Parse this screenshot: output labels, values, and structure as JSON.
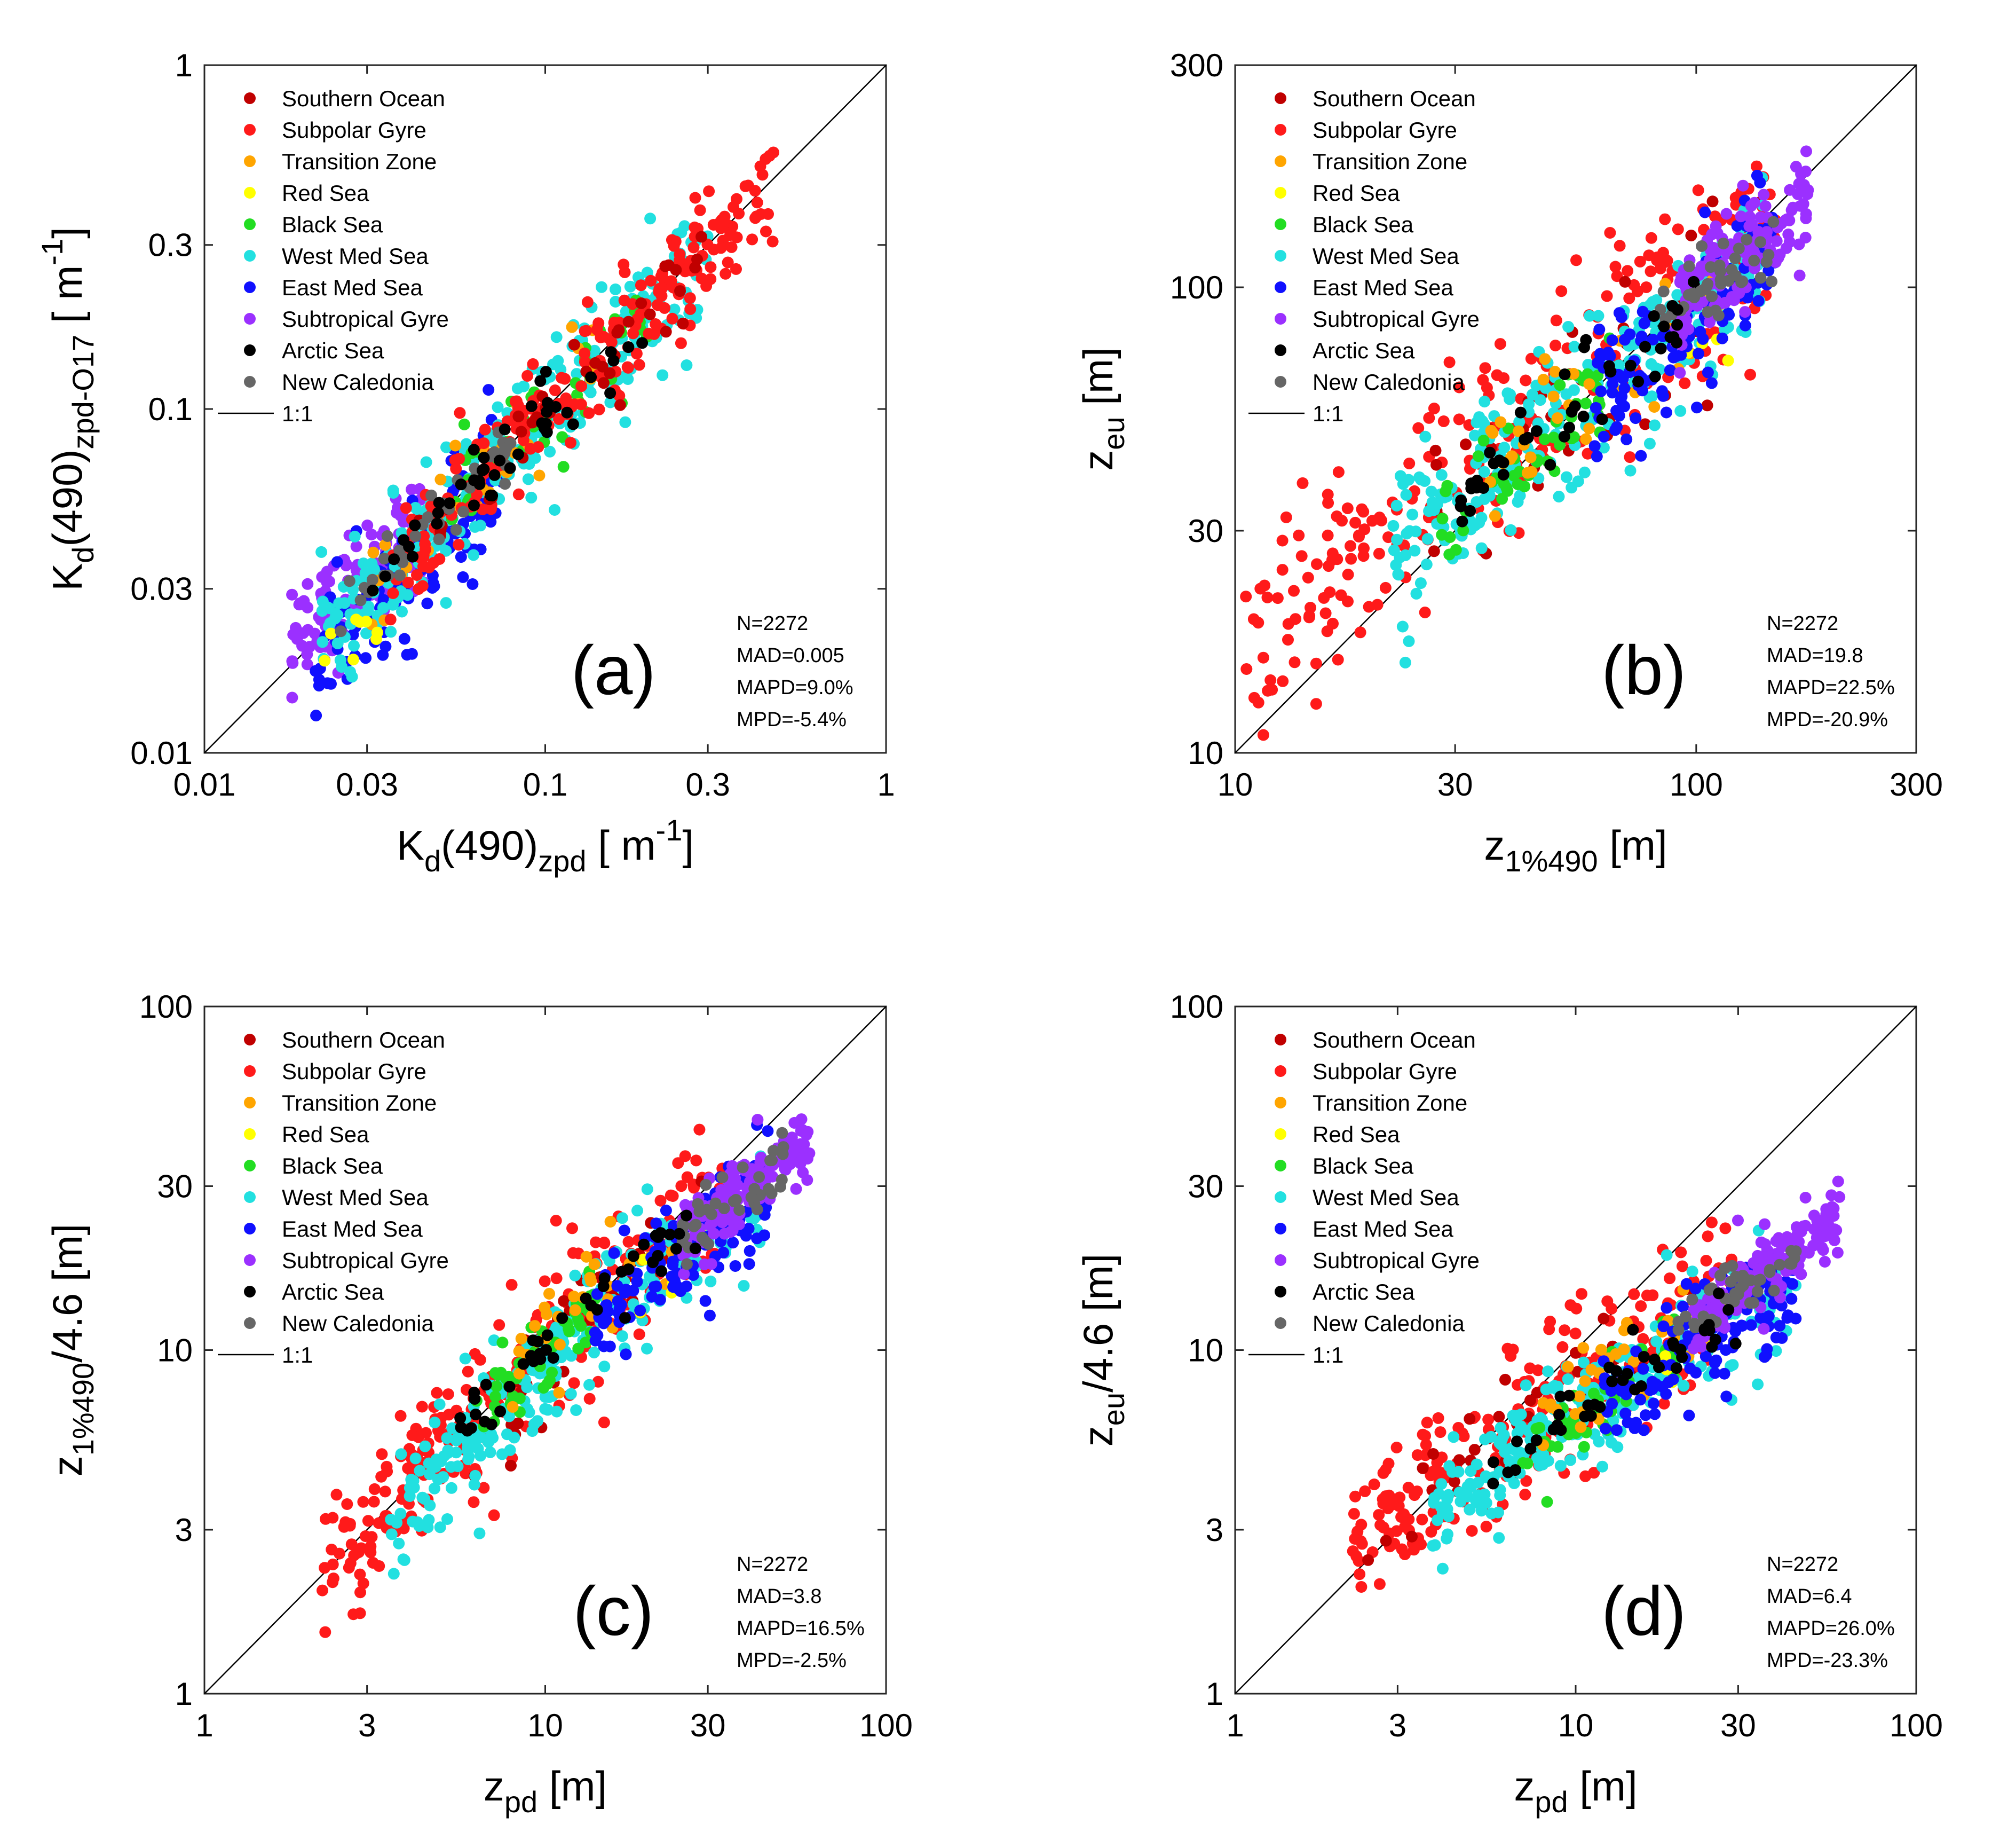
{
  "legend": {
    "entries": [
      {
        "name": "Southern Ocean",
        "color": "#c00000"
      },
      {
        "name": "Subpolar Gyre",
        "color": "#ff1a1a"
      },
      {
        "name": "Transition Zone",
        "color": "#ffa500"
      },
      {
        "name": "Red Sea",
        "color": "#ffff00"
      },
      {
        "name": "Black Sea",
        "color": "#22dd22"
      },
      {
        "name": "West Med Sea",
        "color": "#22e0e0"
      },
      {
        "name": "East Med Sea",
        "color": "#1010ff"
      },
      {
        "name": "Subtropical Gyre",
        "color": "#9b30ff"
      },
      {
        "name": "Arctic Sea",
        "color": "#000000"
      },
      {
        "name": "New Caledonia",
        "color": "#666666"
      }
    ],
    "line_label": "1:1"
  },
  "chart_data": [
    {
      "id": "a",
      "type": "scatter",
      "panel_label": "(a)",
      "xscale": "log",
      "yscale": "log",
      "xlim": [
        0.01,
        1
      ],
      "ylim": [
        0.01,
        1
      ],
      "xticks": [
        0.01,
        0.03,
        0.1,
        0.3,
        1
      ],
      "xtick_labels": [
        "0.01",
        "0.03",
        "0.1",
        "0.3",
        "1"
      ],
      "yticks": [
        0.01,
        0.03,
        0.1,
        0.3,
        1
      ],
      "ytick_labels": [
        "0.01",
        "0.03",
        "0.1",
        "0.3",
        "1"
      ],
      "xlabel": {
        "main": "K",
        "sub": "d",
        "mid": "(490)",
        "sub2": "zpd",
        "tail": " [ m",
        "sup": "-1",
        "end": "]"
      },
      "ylabel": {
        "main": "K",
        "sub": "d",
        "mid": "(490)",
        "sub2": "zpd-O17",
        "tail": " [ m",
        "sup": "-1",
        "end": "]"
      },
      "stats": {
        "n": "N=2272",
        "mad": "MAD=0.005",
        "mapd": "MAPD=9.0%",
        "mpd": "MPD=-5.4%"
      },
      "cloud": {
        "x_range": [
          0.019,
          0.47
        ],
        "slope": 1.0,
        "bias": 0.94,
        "spread": 0.09
      },
      "series": [
        {
          "name": "Subtropical Gyre",
          "x_range": [
            0.018,
            0.045
          ],
          "ratio": 1.08,
          "spread": 0.08,
          "count": 140
        },
        {
          "name": "East Med Sea",
          "x_range": [
            0.021,
            0.075
          ],
          "ratio": 0.86,
          "spread": 0.1,
          "count": 120
        },
        {
          "name": "West Med Sea",
          "x_range": [
            0.022,
            0.3
          ],
          "ratio": 0.93,
          "spread": 0.1,
          "count": 260
        },
        {
          "name": "Black Sea",
          "x_range": [
            0.05,
            0.2
          ],
          "ratio": 0.95,
          "spread": 0.07,
          "count": 50
        },
        {
          "name": "Transition Zone",
          "x_range": [
            0.03,
            0.15
          ],
          "ratio": 0.98,
          "spread": 0.07,
          "count": 35
        },
        {
          "name": "Red Sea",
          "x_range": [
            0.022,
            0.035
          ],
          "ratio": 0.82,
          "spread": 0.08,
          "count": 8
        },
        {
          "name": "Subpolar Gyre",
          "x_range": [
            0.035,
            0.47
          ],
          "ratio": 0.97,
          "spread": 0.08,
          "count": 230
        },
        {
          "name": "Southern Ocean",
          "x_range": [
            0.04,
            0.3
          ],
          "ratio": 0.98,
          "spread": 0.07,
          "count": 40
        },
        {
          "name": "New Caledonia",
          "x_range": [
            0.025,
            0.08
          ],
          "ratio": 1.0,
          "spread": 0.05,
          "count": 40
        },
        {
          "name": "Arctic Sea",
          "x_range": [
            0.03,
            0.2
          ],
          "ratio": 0.97,
          "spread": 0.05,
          "count": 45
        }
      ]
    },
    {
      "id": "b",
      "type": "scatter",
      "panel_label": "(b)",
      "xscale": "log",
      "yscale": "log",
      "xlim": [
        10,
        300
      ],
      "ylim": [
        10,
        300
      ],
      "xticks": [
        10,
        30,
        100,
        300
      ],
      "xtick_labels": [
        "10",
        "30",
        "100",
        "300"
      ],
      "yticks": [
        10,
        30,
        100,
        300
      ],
      "ytick_labels": [
        "10",
        "30",
        "100",
        "300"
      ],
      "xlabel": {
        "main": "z",
        "sub": "1%490",
        "tail": " [m]"
      },
      "ylabel": {
        "main": "z",
        "sub": "eu",
        "tail": " [m]"
      },
      "stats": {
        "n": "N=2272",
        "mad": "MAD=19.8",
        "mapd": "MAPD=22.5%",
        "mpd": "MPD=-20.9%"
      },
      "series": [
        {
          "name": "Subpolar Gyre",
          "x_range": [
            10.5,
            150
          ],
          "ratio": 0.85,
          "spread": 0.12,
          "count": 260,
          "curve": "b"
        },
        {
          "name": "Southern Ocean",
          "x_range": [
            25,
            150
          ],
          "ratio": 0.8,
          "spread": 0.09,
          "count": 40,
          "curve": "b"
        },
        {
          "name": "West Med Sea",
          "x_range": [
            22,
            140
          ],
          "ratio": 0.78,
          "spread": 0.08,
          "count": 260,
          "curve": "b"
        },
        {
          "name": "Black Sea",
          "x_range": [
            28,
            65
          ],
          "ratio": 0.72,
          "spread": 0.06,
          "count": 50,
          "curve": "b"
        },
        {
          "name": "Transition Zone",
          "x_range": [
            35,
            110
          ],
          "ratio": 0.8,
          "spread": 0.07,
          "count": 35,
          "curve": "b"
        },
        {
          "name": "Red Sea",
          "x_range": [
            90,
            130
          ],
          "ratio": 0.7,
          "spread": 0.05,
          "count": 8,
          "curve": "b"
        },
        {
          "name": "East Med Sea",
          "x_range": [
            60,
            150
          ],
          "ratio": 0.74,
          "spread": 0.08,
          "count": 130,
          "curve": "b"
        },
        {
          "name": "Subtropical Gyre",
          "x_range": [
            90,
            175
          ],
          "ratio": 0.85,
          "spread": 0.06,
          "count": 150,
          "curve": "b"
        },
        {
          "name": "New Caledonia",
          "x_range": [
            80,
            150
          ],
          "ratio": 0.82,
          "spread": 0.05,
          "count": 40,
          "curve": "b"
        },
        {
          "name": "Arctic Sea",
          "x_range": [
            30,
            100
          ],
          "ratio": 0.78,
          "spread": 0.05,
          "count": 45,
          "curve": "b"
        }
      ]
    },
    {
      "id": "c",
      "type": "scatter",
      "panel_label": "(c)",
      "xscale": "log",
      "yscale": "log",
      "xlim": [
        1,
        100
      ],
      "ylim": [
        1,
        100
      ],
      "xticks": [
        1,
        3,
        10,
        30,
        100
      ],
      "xtick_labels": [
        "1",
        "3",
        "10",
        "30",
        "100"
      ],
      "yticks": [
        1,
        3,
        10,
        30,
        100
      ],
      "ytick_labels": [
        "1",
        "3",
        "10",
        "30",
        "100"
      ],
      "xlabel": {
        "main": "z",
        "sub": "pd",
        "tail": " [m]"
      },
      "ylabel": {
        "main": "z",
        "sub": "1%490",
        "tail": "/4.6 [m]"
      },
      "stats": {
        "n": "N=2272",
        "mad": "MAD=3.8",
        "mapd": "MAPD=16.5%",
        "mpd": "MPD=-2.5%"
      },
      "series": [
        {
          "name": "Subpolar Gyre",
          "x_range": [
            2.2,
            35
          ],
          "ratio": 1.0,
          "spread": 0.11,
          "count": 260,
          "curve": "c"
        },
        {
          "name": "Southern Ocean",
          "x_range": [
            6,
            30
          ],
          "ratio": 1.0,
          "spread": 0.09,
          "count": 40,
          "curve": "c"
        },
        {
          "name": "West Med Sea",
          "x_range": [
            3.5,
            45
          ],
          "ratio": 0.92,
          "spread": 0.09,
          "count": 260,
          "curve": "c"
        },
        {
          "name": "Black Sea",
          "x_range": [
            6,
            14
          ],
          "ratio": 1.0,
          "spread": 0.07,
          "count": 50,
          "curve": "c"
        },
        {
          "name": "Transition Zone",
          "x_range": [
            8,
            25
          ],
          "ratio": 1.05,
          "spread": 0.07,
          "count": 35,
          "curve": "c"
        },
        {
          "name": "Red Sea",
          "x_range": [
            18,
            30
          ],
          "ratio": 0.9,
          "spread": 0.05,
          "count": 8,
          "curve": "c"
        },
        {
          "name": "East Med Sea",
          "x_range": [
            14,
            45
          ],
          "ratio": 0.9,
          "spread": 0.08,
          "count": 130,
          "curve": "c"
        },
        {
          "name": "Subtropical Gyre",
          "x_range": [
            25,
            60
          ],
          "ratio": 1.0,
          "spread": 0.05,
          "count": 150,
          "curve": "c"
        },
        {
          "name": "New Caledonia",
          "x_range": [
            25,
            50
          ],
          "ratio": 1.0,
          "spread": 0.05,
          "count": 40,
          "curve": "c"
        },
        {
          "name": "Arctic Sea",
          "x_range": [
            5.5,
            30
          ],
          "ratio": 1.02,
          "spread": 0.05,
          "count": 45,
          "curve": "c"
        }
      ]
    },
    {
      "id": "d",
      "type": "scatter",
      "panel_label": "(d)",
      "xscale": "log",
      "yscale": "log",
      "xlim": [
        1,
        100
      ],
      "ylim": [
        1,
        100
      ],
      "xticks": [
        1,
        3,
        10,
        30,
        100
      ],
      "xtick_labels": [
        "1",
        "3",
        "10",
        "30",
        "100"
      ],
      "yticks": [
        1,
        3,
        10,
        30,
        100
      ],
      "ytick_labels": [
        "1",
        "3",
        "10",
        "30",
        "100"
      ],
      "xlabel": {
        "main": "z",
        "sub": "pd",
        "tail": " [m]"
      },
      "ylabel": {
        "main": "z",
        "sub": "eu",
        "tail": "/4.6 [m]"
      },
      "stats": {
        "n": "N=2272",
        "mad": "MAD=6.4",
        "mapd": "MAPD=26.0%",
        "mpd": "MPD=-23.3%"
      },
      "series": [
        {
          "name": "Subpolar Gyre",
          "x_range": [
            2.2,
            30
          ],
          "ratio": 0.9,
          "spread": 0.11,
          "count": 260,
          "curve": "d"
        },
        {
          "name": "Southern Ocean",
          "x_range": [
            2.4,
            28
          ],
          "ratio": 0.92,
          "spread": 0.09,
          "count": 40,
          "curve": "d"
        },
        {
          "name": "West Med Sea",
          "x_range": [
            3.8,
            45
          ],
          "ratio": 0.75,
          "spread": 0.08,
          "count": 260,
          "curve": "d"
        },
        {
          "name": "Black Sea",
          "x_range": [
            7,
            20
          ],
          "ratio": 0.75,
          "spread": 0.06,
          "count": 50,
          "curve": "d"
        },
        {
          "name": "Transition Zone",
          "x_range": [
            8,
            25
          ],
          "ratio": 0.9,
          "spread": 0.07,
          "count": 35,
          "curve": "d"
        },
        {
          "name": "Red Sea",
          "x_range": [
            18,
            30
          ],
          "ratio": 0.75,
          "spread": 0.05,
          "count": 8,
          "curve": "d"
        },
        {
          "name": "East Med Sea",
          "x_range": [
            12,
            45
          ],
          "ratio": 0.72,
          "spread": 0.08,
          "count": 130,
          "curve": "d"
        },
        {
          "name": "Subtropical Gyre",
          "x_range": [
            22,
            60
          ],
          "ratio": 0.88,
          "spread": 0.06,
          "count": 150,
          "curve": "d"
        },
        {
          "name": "New Caledonia",
          "x_range": [
            20,
            45
          ],
          "ratio": 0.85,
          "spread": 0.05,
          "count": 40,
          "curve": "d"
        },
        {
          "name": "Arctic Sea",
          "x_range": [
            5.5,
            30
          ],
          "ratio": 0.8,
          "spread": 0.05,
          "count": 45,
          "curve": "d"
        }
      ]
    }
  ]
}
